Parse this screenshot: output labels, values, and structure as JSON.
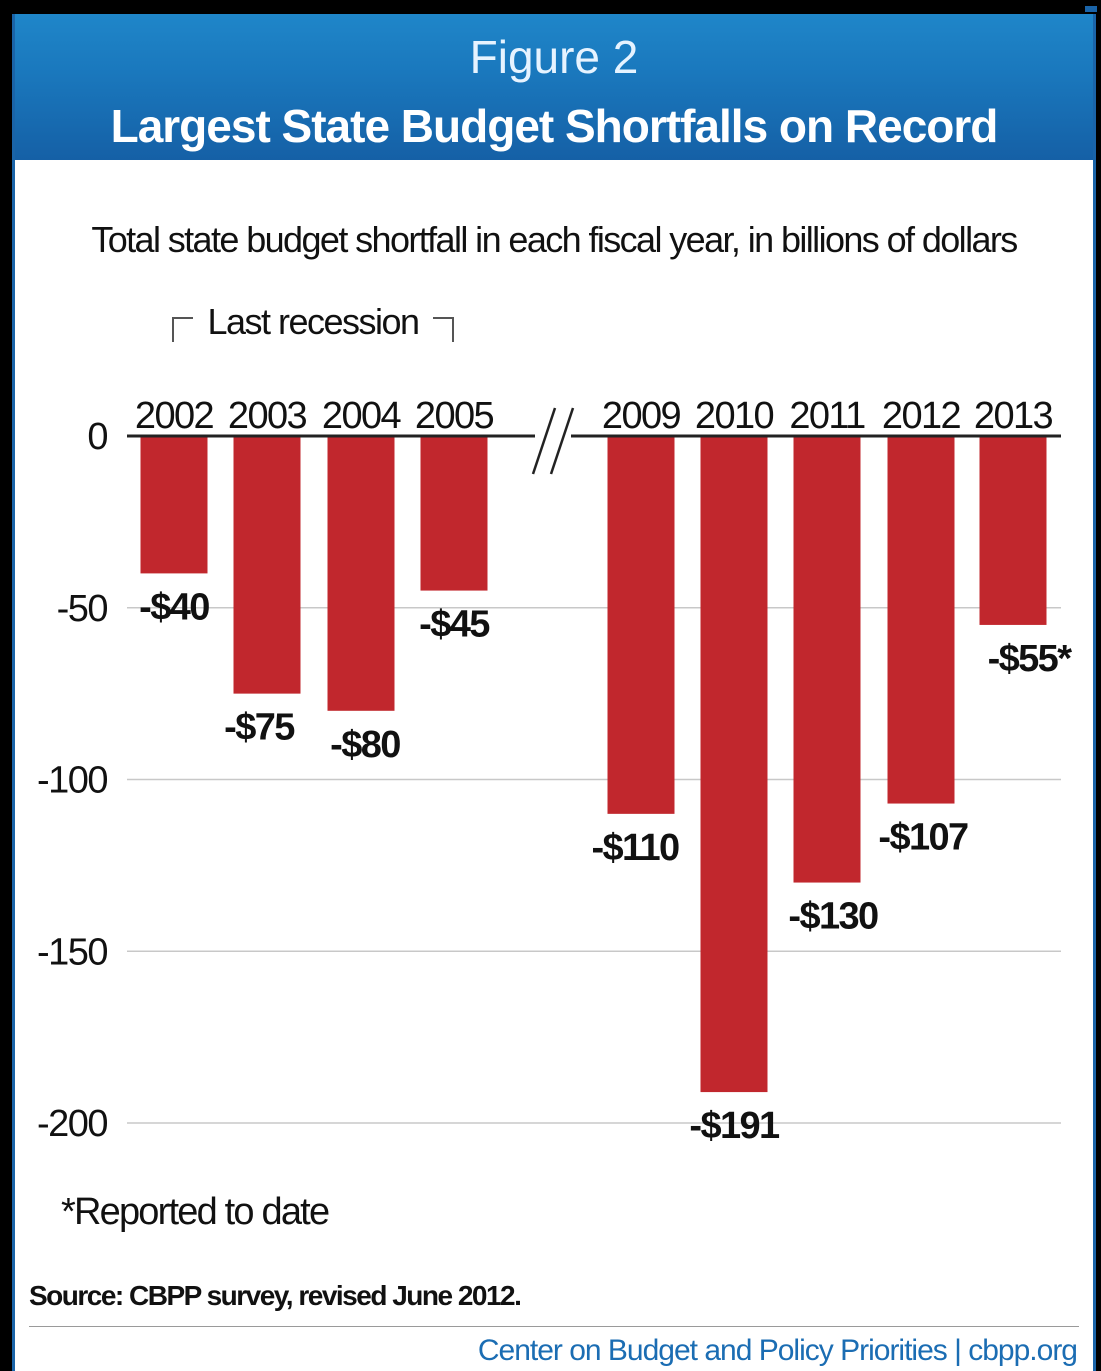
{
  "header": {
    "figure_label": "Figure 2",
    "title": "Largest State Budget Shortfalls on Record"
  },
  "chart_data": {
    "type": "bar",
    "subtitle": "Total state budget shortfall in each fiscal year, in billions of dollars",
    "categories": [
      "2002",
      "2003",
      "2004",
      "2005",
      "2009",
      "2010",
      "2011",
      "2012",
      "2013"
    ],
    "values": [
      -40,
      -75,
      -80,
      -45,
      -110,
      -191,
      -130,
      -107,
      -55
    ],
    "data_labels": [
      "-$40",
      "-$75",
      "-$80",
      "-$45",
      "-$110",
      "-$191",
      "-$130",
      "-$107",
      "-$55*"
    ],
    "y_ticks": [
      0,
      -50,
      -100,
      -150,
      -200
    ],
    "y_tick_labels": [
      "0",
      "-50",
      "-100",
      "-150",
      "-200"
    ],
    "ylim": [
      -200,
      0
    ],
    "grid": true,
    "axis_break": "between 2005 and 2009",
    "bracket_annotation": "Last recession",
    "footnote": "*Reported to date",
    "colors": {
      "bar": "#c1272d",
      "header": "#1a78bd",
      "credit": "#1b6db3"
    }
  },
  "footer": {
    "source": "Source: CBPP survey, revised June 2012.",
    "credit": "Center on Budget and Policy Priorities | cbpp.org"
  }
}
